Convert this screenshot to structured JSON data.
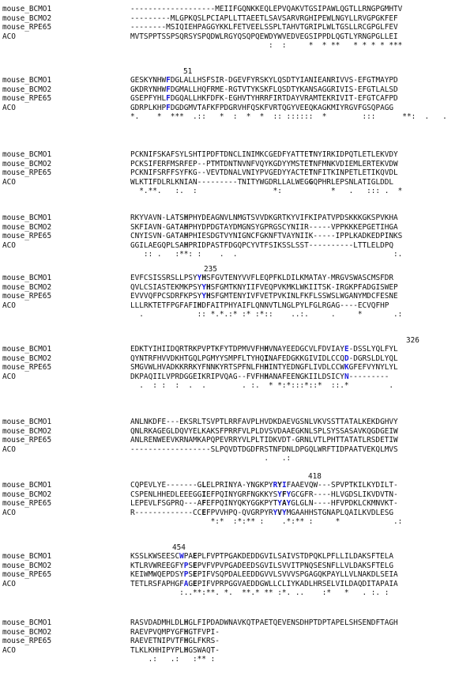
{
  "names": [
    "mouse_BCMO1",
    "mouse_BCMO2",
    "mouse_RPE65",
    "ACO"
  ],
  "blocks": [
    {
      "position_label": null,
      "rows": [
        "-------------------MEIIFGQNKKEQLEPVQAKVTGSIPAWLQGTLLRNGPGMHTV",
        "---------MLGPKQSLPCIAPLLTTAEETLSAVSARVRGHIPEWLNGYLLRVGPGKFEF",
        "--------MSIQIEHPAGGYKKLFETVEELSSPLTAHVTGRIPLWLTGSLLRCGPGLFEV",
        "MVTSPPTSSPSQRSYSPQDWLRGYQSQPQEWDYWVEDVEGSIPPDLQGTLYRNGPGLLEI"
      ],
      "consensus": "                               :  :     *  * **   * * * * ***   "
    },
    {
      "position_label": "51",
      "rows": [
        "GESKYNHWFDGLALLHSFSIR-DGEVFYRSKYLQSDTYIANIEANRIVVS-EFGTMAYPD",
        "GKDRYNHWFDGMALLHQFRME-RGTVTYKSKFLQSDTYKANSAGGRIVIS-EFGTLALSD",
        "GSEPFYHLFDGQALLHKFDFK-EGHVTYHRRFIRTDAYVRAMTEKRIVIT-EFGTCAFPD",
        "GDRPLKHPFDGDGMVTAFKFPDGRVHFQSKFVRTQGYVEEQKAGKMIYRGVFGSQPAGG"
      ],
      "consensus": "*.    *  ***  .::   *  :  *  *  :: ::::::  *        :::      **:  .   ."
    },
    {
      "position_label": null,
      "rows": [
        "PCKNIFSKAFSYLSHTIPDFTDNCLINIMKCGEDFYATTETNYIRKIDPQTLETLEKVDY",
        "PCKSIFERFMSRFEP--PTMTDNTNVNFVQYKGDYYMSTETNFMNKVDIEMLERTEKVDW",
        "PCKNIFSRFFSYFKG--VEVTDNALVNIYPVGEDYYACTETNFITKINPETLETIKQVDL",
        "WLKTIFDLRLKNIAN---------TNITYWGDRLLALWEGGQPHRLEPSNLATIGLDDL"
      ],
      "consensus": "  *.**.   :.  :                 *:           *   .   ::: .  *"
    },
    {
      "position_label": null,
      "rows": [
        "RKYVAVN-LATSHPHYDEAGNVLNMGTSVVDKGRTKYVIFKIPATVPDSKKKGKSPVKHA",
        "SKFIAVN-GATAHPHYDPDGTAYDMGNSYGPRGSCYNIIR-----VPPKKKEPGETIHGA",
        "CNYISVN-GATAHPHIESDGTVYNIGNCFGKNFTVAYNIIK-----IPPLKADKEDPINKS",
        "GGILAEGQPLSAHPRIDPASTFDGQPCYVTFSIKSSLSST----------LTTLELDPQ"
      ],
      "consensus": "   :: .   :**: :    .  .                                   :."
    },
    {
      "position_label": "235",
      "rows": [
        "EVFCSISSRSLLPSYYHSFGVTENYVVFLEQPFKLDILKMATAY-MRGVSWASCMSFDR",
        "QVLCSIASTEKMKPSYYHSFGMTKNYIIFVEQPVKMKLWKIITSK-IRGKPFADGISWEP",
        "EVVVQFPCSDRFKPSYYHSFGMTENYIVFVETPVKINLFKFLSSWSLWGANYMDCFESNE",
        "LLLRKTETFPGFAFIHDFAITPHYAIFLQNNVTLNGLPYLFGLRGAG----ECVQFHP"
      ],
      "consensus": "  .            :: *.*.:* :* :*::    ..:.     .     *       .:"
    },
    {
      "position_label": "326",
      "rows": [
        "EDKTYIHIIDQRTRKPVPTKFYTDPMVVFHHVNAYEEDGCVLFDVIAYE-DSSLYQLFYL",
        "QYNTRFHVVDKHTGQLPGMYYSMPFLTYHQINAFEDGKKGIVIDLCCQD-DGRSLDLYQL",
        "SMGVWLHVADKKRRKYFNNKYRTSPFNLFHHINTYEDNGFLIVDLCCWKGFEFVYNYLYL",
        "DKPAQIILVPRDGGEIKRIPVQAG--FVFHHANAFEENGKIILDSICYN---------"
      ],
      "consensus": "  .  : :  :  .  .        . :.  * *:*:::*::*  ::.*         ."
    },
    {
      "position_label": null,
      "rows": [
        "ANLNKDFE---EKSRLTSVPTLRRFAVPLHVDKDAEVGSNLVKVSSTTATALKEKDGHVY",
        "QNLRKAGEGLDQVYELKAKSFPRRFVLPLDVSVDAAEGKNLSPLSYSSASAVKQGDGEIW",
        "ANLRENWEEVKRNAMKAPQPEVRRYVLPLTIDKVDT-GRNLVTLPHTTATATLRSDETIW",
        "------------------SLPQVDTDGDFRSTNFDNLDPGQLWRFTIDPAATVEKQLMVS"
      ],
      "consensus": "                              .   .:                          "
    },
    {
      "position_label": "418",
      "rows": [
        "CQPEVLYE-------GLELPRINYA-YNGKPYRYIFAAEVQW---SPVPTKILKYDILT-",
        "CSPENLHHEDLEEEGGIEFPQINYGRFNGKKYSYFYGCGFR----HLVGDSLIKVDVTN-",
        "LEPEVLFSGPRQ---AFEFPQINYQKYGGKPYTYAYGLGLN----HFVPDKLCKMNVKT-",
        "R-------------CCEFPVVHPQ-QVGRPYRYVYMGAAHHSTGNAPLQAILKVDLESG"
      ],
      "consensus": "                  *:*  :*:** :    .*:** :     *            .:"
    },
    {
      "position_label": "454",
      "rows": [
        "KSSLKWSEESCWPAEPLFVPTPGAKDEDDGVILSAIVSTDPQKLPFLLILDAKSFTELA",
        "KTLRVWREEGFYPSEPVFVPVPGADEEDSGVILSVVITPNQSESNFLLVLDAKSFTELG",
        "KEIWMWQEPDSYPSEPIFVSQPDALEEDDGVVLSVVVSPGAGQKPAYLLVLNAKDLSEIA",
        "TETLRSFAPHGFAGEPIFVPRPGGVAEDDGWLLCLIYKADLHRSELVILDAQDITAPAIA"
      ],
      "consensus": "           :..**:**. *.  **.* ** :*. ..    :*   *   . :. :"
    },
    {
      "position_label": null,
      "rows": [
        "RASVDADMHLDLHGLFIPDADWNAVKQTPAETQEVENSDHPTDPTAPELSHSENDFTAGH",
        "RAEVPVQMPYGFHGTFVPI-",
        "RAEVETNIPVTFHGLFKRS-",
        "TLKLKHHIPYPLHGSWAQT-"
      ],
      "consensus": "    .:   .:   :** :"
    }
  ]
}
